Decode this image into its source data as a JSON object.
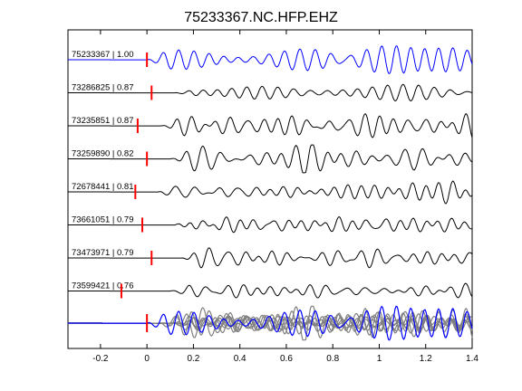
{
  "chart_data": {
    "type": "line",
    "title": "75233367.NC.HFP.EHZ",
    "xlabel": "",
    "ylabel": "",
    "xlim": [
      -0.34,
      1.4
    ],
    "x_ticks": [
      -0.2,
      0,
      0.2,
      0.4,
      0.6,
      0.8,
      1,
      1.2,
      1.4
    ],
    "x_tick_labels": [
      "-0.2",
      "0",
      "0.2",
      "0.4",
      "0.6",
      "0.8",
      "1",
      "1.2",
      "1.4"
    ],
    "grid": false,
    "legend": false,
    "colors": {
      "primary": "#0000ff",
      "secondary": "#000000",
      "overlay": "#808080",
      "pick": "#ff0000"
    },
    "series": [
      {
        "name": "75233367",
        "label": "75233367 | 1.00",
        "pick": 0.0,
        "color": "#0000ff",
        "seed": 1,
        "onset": 0.0,
        "amp": 1.0
      },
      {
        "name": "73286825",
        "label": "73286825 | 0.87",
        "pick": 0.02,
        "color": "#000000",
        "seed": 2,
        "onset": 0.12,
        "amp": 0.55
      },
      {
        "name": "73235851",
        "label": "73235851 | 0.87",
        "pick": -0.04,
        "color": "#000000",
        "seed": 3,
        "onset": 0.06,
        "amp": 0.85
      },
      {
        "name": "73259890",
        "label": "73259890 | 0.82",
        "pick": 0.0,
        "color": "#000000",
        "seed": 4,
        "onset": 0.1,
        "amp": 0.8
      },
      {
        "name": "72678441",
        "label": "72678441 | 0.81",
        "pick": -0.05,
        "color": "#000000",
        "seed": 5,
        "onset": 0.05,
        "amp": 0.9
      },
      {
        "name": "73661051",
        "label": "73661051 | 0.79",
        "pick": -0.02,
        "color": "#000000",
        "seed": 6,
        "onset": 0.12,
        "amp": 0.6
      },
      {
        "name": "73473971",
        "label": "73473971 | 0.79",
        "pick": 0.02,
        "color": "#000000",
        "seed": 7,
        "onset": 0.15,
        "amp": 0.75
      },
      {
        "name": "73599421",
        "label": "73599421 | 0.76",
        "pick": -0.11,
        "color": "#000000",
        "seed": 8,
        "onset": 0.1,
        "amp": 0.6
      }
    ],
    "stack": {
      "colors": [
        "#0000ff",
        "#808080"
      ],
      "pick": 0.0
    }
  }
}
